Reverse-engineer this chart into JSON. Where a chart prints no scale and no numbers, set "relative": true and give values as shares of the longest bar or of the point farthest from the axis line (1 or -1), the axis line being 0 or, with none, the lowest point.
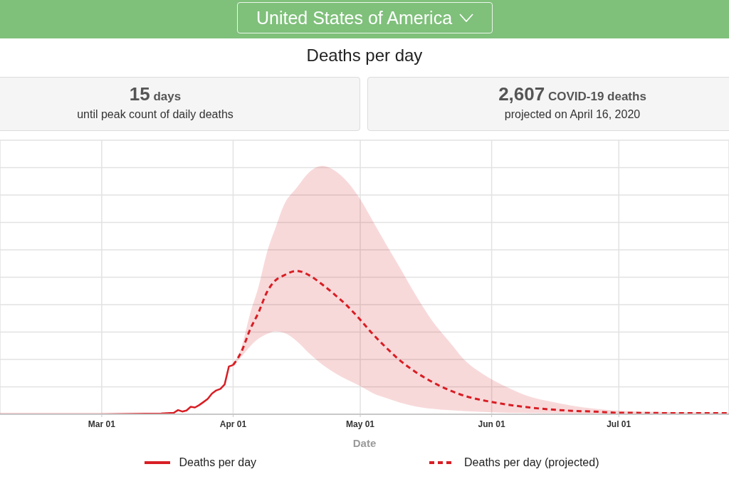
{
  "chart_data": {
    "type": "line",
    "title": "United States of America",
    "subtitle": "Deaths per day",
    "annotations": [
      "15 days",
      "until peak count of daily deaths",
      "2,607 COVID-19 deaths",
      "projected on April 16, 2020"
    ],
    "xlabel": "Date",
    "relative": true,
    "grid": true,
    "legend": "bottom",
    "marker": "none",
    "xlim": [
      "2020-02-06",
      "2020-07-27"
    ],
    "xticks": [
      {
        "value": "2020-03-01",
        "label": "Mar 01"
      },
      {
        "value": "2020-04-01",
        "label": "Apr 01"
      },
      {
        "value": "2020-05-01",
        "label": "May 01"
      },
      {
        "value": "2020-06-01",
        "label": "Jun 01"
      },
      {
        "value": "2020-07-01",
        "label": "Jul 01"
      }
    ],
    "series": [
      {
        "name": "Deaths per day",
        "color": "#d81e24",
        "line_style": "solid",
        "x": [
          "2020-02-06",
          "2020-03-01",
          "2020-03-15",
          "2020-03-18",
          "2020-03-19",
          "2020-03-20",
          "2020-03-21",
          "2020-03-22",
          "2020-03-23",
          "2020-03-24",
          "2020-03-25",
          "2020-03-26",
          "2020-03-27",
          "2020-03-28",
          "2020-03-29",
          "2020-03-30",
          "2020-03-31",
          "2020-04-01"
        ],
        "values": [
          0,
          0,
          0.005,
          0.01,
          0.029,
          0.019,
          0.026,
          0.052,
          0.047,
          0.064,
          0.085,
          0.107,
          0.144,
          0.166,
          0.177,
          0.208,
          0.333,
          0.343
        ]
      },
      {
        "name": "Deaths per day (projected)",
        "color": "#d81e24",
        "line_style": "dashed",
        "x": [
          "2020-04-01",
          "2020-04-03",
          "2020-04-05",
          "2020-04-07",
          "2020-04-09",
          "2020-04-11",
          "2020-04-13",
          "2020-04-16",
          "2020-04-19",
          "2020-04-22",
          "2020-04-25",
          "2020-04-28",
          "2020-05-01",
          "2020-05-04",
          "2020-05-07",
          "2020-05-10",
          "2020-05-14",
          "2020-05-18",
          "2020-05-22",
          "2020-05-26",
          "2020-05-30",
          "2020-06-05",
          "2020-06-10",
          "2020-06-15",
          "2020-06-20",
          "2020-06-25",
          "2020-07-01",
          "2020-07-08",
          "2020-07-15",
          "2020-07-22",
          "2020-07-27"
        ],
        "values": [
          0.343,
          0.439,
          0.591,
          0.71,
          0.853,
          0.934,
          0.969,
          1,
          0.969,
          0.906,
          0.834,
          0.754,
          0.659,
          0.558,
          0.468,
          0.385,
          0.296,
          0.225,
          0.168,
          0.125,
          0.097,
          0.066,
          0.047,
          0.033,
          0.024,
          0.019,
          0.01,
          0.009,
          0.007,
          0.007,
          0.007
        ],
        "lower": [
          0.343,
          0.402,
          0.473,
          0.527,
          0.56,
          0.579,
          0.568,
          0.51,
          0.423,
          0.348,
          0.288,
          0.239,
          0.196,
          0.147,
          0.114,
          0.085,
          0.055,
          0.038,
          0.028,
          0.021,
          0.016,
          0.01,
          0.009,
          0.007,
          0.005,
          0.005,
          0.003,
          0.003,
          0.003,
          0.003,
          0.003
        ],
        "upper": [
          0.343,
          0.47,
          0.7,
          0.89,
          1.13,
          1.3,
          1.46,
          1.58,
          1.69,
          1.733,
          1.7,
          1.62,
          1.5,
          1.346,
          1.19,
          1.04,
          0.835,
          0.651,
          0.507,
          0.367,
          0.279,
          0.184,
          0.123,
          0.088,
          0.06,
          0.04,
          0.025,
          0.018,
          0.015,
          0.012,
          0.01
        ]
      }
    ]
  }
}
